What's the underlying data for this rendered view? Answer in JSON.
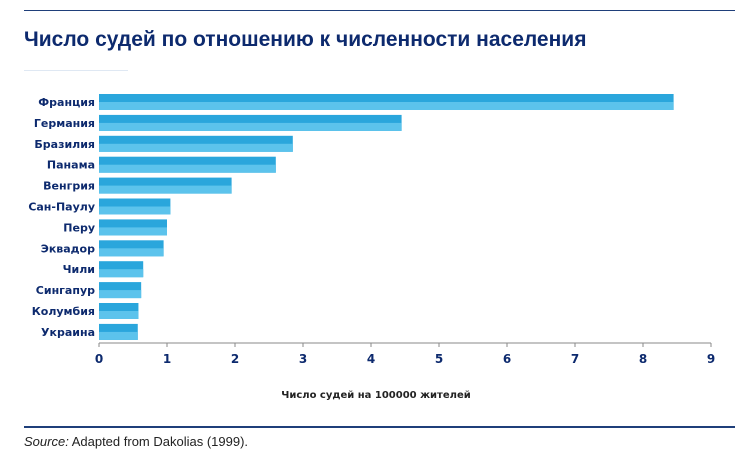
{
  "title": "Число судей по отношению к численности населения",
  "source": {
    "label": "Source:",
    "text": " Adapted from Dakolias (1999)."
  },
  "colors": {
    "bar": "#2aa6dc",
    "bar_highlight": "#5cc3ec",
    "axis": "#8a8a8a",
    "text": "#0d2a6e",
    "rule": "#1f3f7a"
  },
  "chart_data": {
    "type": "bar",
    "orientation": "horizontal",
    "categories": [
      "Франция",
      "Германия",
      "Бразилия",
      "Панама",
      "Венгрия",
      "Сан-Паулу",
      "Перу",
      "Эквадор",
      "Чили",
      "Сингапур",
      "Колумбия",
      "Украина"
    ],
    "values": [
      8.45,
      4.45,
      2.85,
      2.6,
      1.95,
      1.05,
      1.0,
      0.95,
      0.65,
      0.62,
      0.58,
      0.57
    ],
    "xlabel": "Число судей на 100000 жителей",
    "xlim": [
      0,
      9
    ],
    "xticks": [
      0,
      1,
      2,
      3,
      4,
      5,
      6,
      7,
      8,
      9
    ],
    "grid": false,
    "legend": "none"
  }
}
